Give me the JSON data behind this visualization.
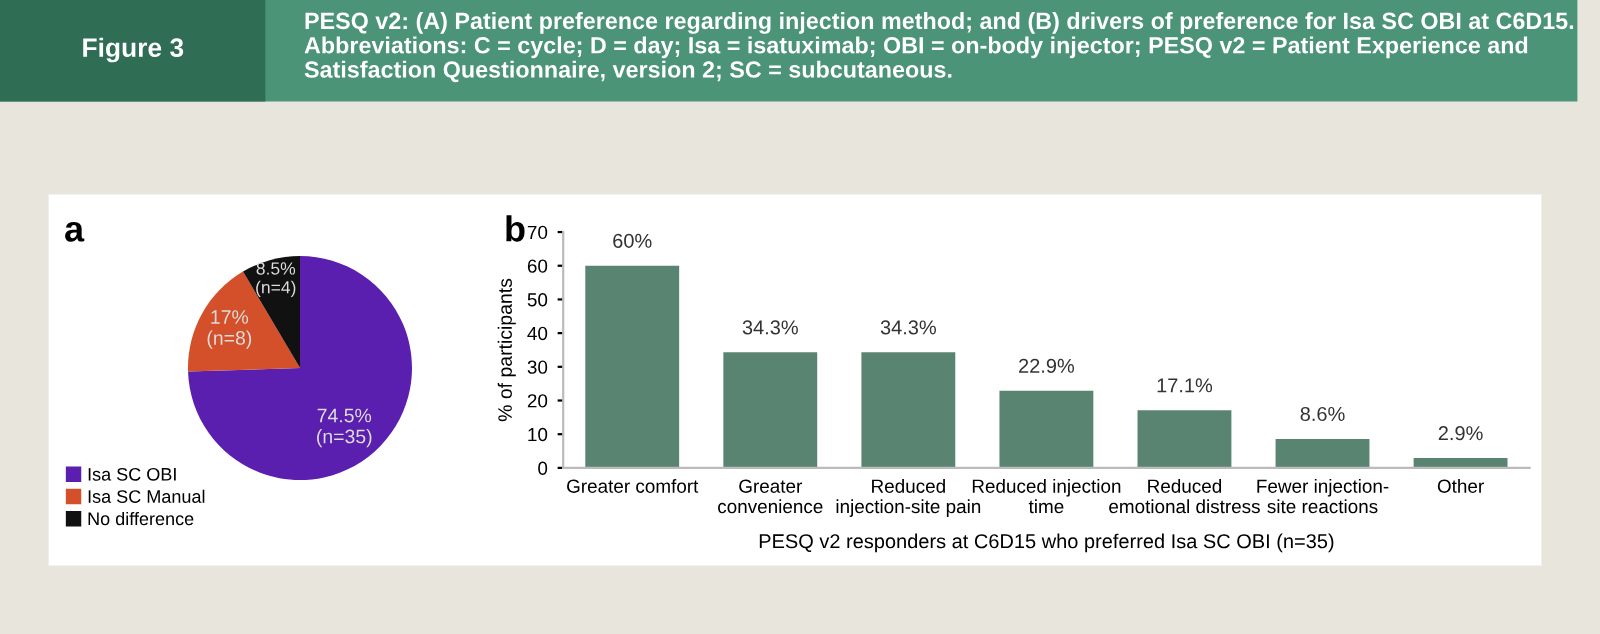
{
  "chart_data": [
    {
      "type": "pie",
      "title": "a",
      "annotations": [
        "Figure 3",
        "PESQ v2: (A) Patient preference regarding injection method; and (B) drivers of preference for Isa SC OBI at C6D15. Abbreviations: C = cycle; D = day; Isa = isatuximab; OBI = on-body injector; PESQ v2 = Patient Experience and Satisfaction Questionnaire, version 2; SC = subcutaneous."
      ],
      "categories": [
        "Isa SC OBI",
        "Isa SC Manual",
        "No difference"
      ],
      "values": [
        74.5,
        17,
        8.5
      ],
      "colors": [
        "#5b1fb0",
        "#d4502a",
        "#111111"
      ],
      "value_labels": [
        "74.5%\n(n=35)",
        "17%\n(n=8)",
        "8.5%\n(n=4)"
      ],
      "legend": "bottom left"
    },
    {
      "type": "bar",
      "title": "b",
      "xlabel": "PESQ v2 responders at C6D15 who preferred Isa SC OBI (n=35)",
      "ylabel": "% of participants",
      "categories": [
        "Greater comfort",
        "Greater\nconvenience",
        "Reduced\ninjection-site pain",
        "Reduced injection\ntime",
        "Reduced\nemotional distress",
        "Fewer injection-\nsite reactions",
        "Other"
      ],
      "values": [
        60,
        34.3,
        34.3,
        22.9,
        17.1,
        8.6,
        2.9
      ],
      "color": "#5a8472",
      "value_labels": [
        "60%",
        "34.3%",
        "34.3%",
        "22.9%",
        "17.1%",
        "8.6%",
        "2.9%"
      ],
      "ylim": [
        0,
        70
      ],
      "yticks": [
        0,
        10,
        20,
        30,
        40,
        50,
        60,
        70
      ],
      "grid": false
    }
  ]
}
